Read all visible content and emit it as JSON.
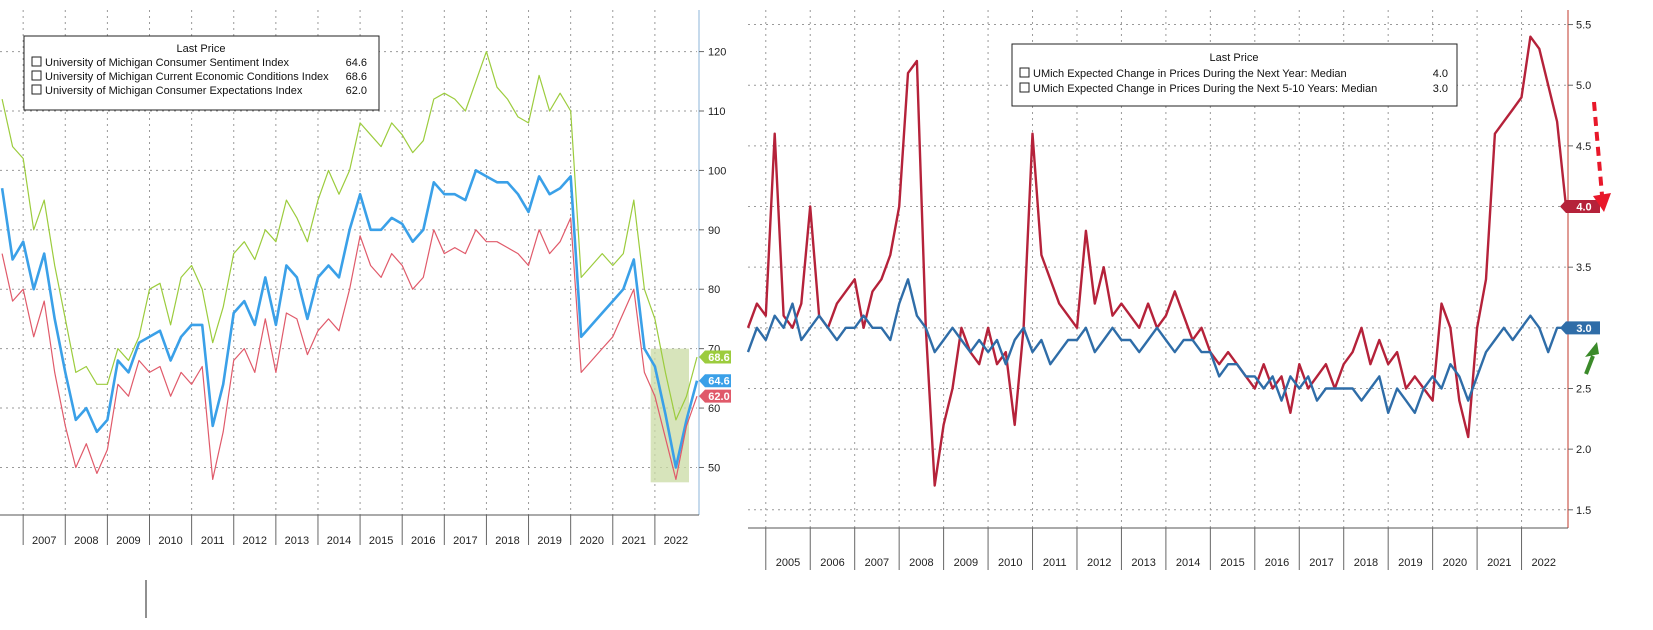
{
  "chart_data": [
    {
      "type": "line",
      "title": "",
      "legend_title": "Last Price",
      "legend_position": "top-left",
      "xlabel": "",
      "ylabel": "",
      "ylim": [
        42,
        127
      ],
      "y_ticks": [
        50,
        60,
        70,
        80,
        90,
        100,
        110,
        120
      ],
      "x_ticks": [
        "2007",
        "2008",
        "2009",
        "2010",
        "2011",
        "2012",
        "2013",
        "2014",
        "2015",
        "2016",
        "2017",
        "2018",
        "2019",
        "2020",
        "2021",
        "2022"
      ],
      "xlim": [
        2006.45,
        2023.0
      ],
      "grid": true,
      "annotation": "shaded box over 2022 trough",
      "series": [
        {
          "name": "University of Michigan Consumer Sentiment Index",
          "last": "64.6",
          "color": "#3aa0e8",
          "x": [
            2006.5,
            2006.75,
            2007.0,
            2007.25,
            2007.5,
            2007.75,
            2008.0,
            2008.25,
            2008.5,
            2008.75,
            2009.0,
            2009.25,
            2009.5,
            2009.75,
            2010.0,
            2010.25,
            2010.5,
            2010.75,
            2011.0,
            2011.25,
            2011.5,
            2011.75,
            2012.0,
            2012.25,
            2012.5,
            2012.75,
            2013.0,
            2013.25,
            2013.5,
            2013.75,
            2014.0,
            2014.25,
            2014.5,
            2014.75,
            2015.0,
            2015.25,
            2015.5,
            2015.75,
            2016.0,
            2016.25,
            2016.5,
            2016.75,
            2017.0,
            2017.25,
            2017.5,
            2017.75,
            2018.0,
            2018.25,
            2018.5,
            2018.75,
            2019.0,
            2019.25,
            2019.5,
            2019.75,
            2020.0,
            2020.25,
            2020.5,
            2020.75,
            2021.0,
            2021.25,
            2021.5,
            2021.75,
            2022.0,
            2022.25,
            2022.5,
            2022.75,
            2023.0
          ],
          "values": [
            97,
            85,
            88,
            80,
            86,
            75,
            66,
            58,
            60,
            56,
            58,
            68,
            66,
            71,
            72,
            73,
            68,
            72,
            74,
            74,
            57,
            64,
            76,
            78,
            74,
            82,
            74,
            84,
            82,
            75,
            82,
            84,
            82,
            90,
            96,
            90,
            90,
            92,
            91,
            88,
            90,
            98,
            96,
            96,
            95,
            100,
            99,
            98,
            98,
            96,
            93,
            99,
            96,
            97,
            99,
            72,
            74,
            76,
            78,
            80,
            85,
            70,
            67,
            59,
            50,
            58,
            64.6
          ]
        },
        {
          "name": "University of Michigan Current Economic Conditions Index",
          "last": "68.6",
          "color": "#9ccc3d",
          "x": [
            2006.5,
            2006.75,
            2007.0,
            2007.25,
            2007.5,
            2007.75,
            2008.0,
            2008.25,
            2008.5,
            2008.75,
            2009.0,
            2009.25,
            2009.5,
            2009.75,
            2010.0,
            2010.25,
            2010.5,
            2010.75,
            2011.0,
            2011.25,
            2011.5,
            2011.75,
            2012.0,
            2012.25,
            2012.5,
            2012.75,
            2013.0,
            2013.25,
            2013.5,
            2013.75,
            2014.0,
            2014.25,
            2014.5,
            2014.75,
            2015.0,
            2015.25,
            2015.5,
            2015.75,
            2016.0,
            2016.25,
            2016.5,
            2016.75,
            2017.0,
            2017.25,
            2017.5,
            2017.75,
            2018.0,
            2018.25,
            2018.5,
            2018.75,
            2019.0,
            2019.25,
            2019.5,
            2019.75,
            2020.0,
            2020.25,
            2020.5,
            2020.75,
            2021.0,
            2021.25,
            2021.5,
            2021.75,
            2022.0,
            2022.25,
            2022.5,
            2022.75,
            2023.0
          ],
          "values": [
            112,
            104,
            102,
            90,
            95,
            84,
            75,
            66,
            67,
            64,
            64,
            70,
            68,
            72,
            80,
            81,
            74,
            82,
            84,
            80,
            71,
            77,
            86,
            88,
            85,
            90,
            88,
            95,
            92,
            88,
            95,
            100,
            96,
            100,
            108,
            106,
            104,
            108,
            106,
            103,
            105,
            112,
            113,
            112,
            110,
            115,
            120,
            114,
            112,
            109,
            108,
            116,
            110,
            113,
            110,
            82,
            84,
            86,
            84,
            86,
            95,
            80,
            75,
            66,
            58,
            62,
            68.6
          ]
        },
        {
          "name": "University of Michigan Consumer Expectations Index",
          "last": "62.0",
          "color": "#e05a6a",
          "x": [
            2006.5,
            2006.75,
            2007.0,
            2007.25,
            2007.5,
            2007.75,
            2008.0,
            2008.25,
            2008.5,
            2008.75,
            2009.0,
            2009.25,
            2009.5,
            2009.75,
            2010.0,
            2010.25,
            2010.5,
            2010.75,
            2011.0,
            2011.25,
            2011.5,
            2011.75,
            2012.0,
            2012.25,
            2012.5,
            2012.75,
            2013.0,
            2013.25,
            2013.5,
            2013.75,
            2014.0,
            2014.25,
            2014.5,
            2014.75,
            2015.0,
            2015.25,
            2015.5,
            2015.75,
            2016.0,
            2016.25,
            2016.5,
            2016.75,
            2017.0,
            2017.25,
            2017.5,
            2017.75,
            2018.0,
            2018.25,
            2018.5,
            2018.75,
            2019.0,
            2019.25,
            2019.5,
            2019.75,
            2020.0,
            2020.25,
            2020.5,
            2020.75,
            2021.0,
            2021.25,
            2021.5,
            2021.75,
            2022.0,
            2022.25,
            2022.5,
            2022.75,
            2023.0
          ],
          "values": [
            86,
            78,
            80,
            72,
            78,
            66,
            57,
            50,
            54,
            49,
            53,
            64,
            62,
            68,
            66,
            67,
            62,
            66,
            64,
            67,
            48,
            56,
            68,
            70,
            66,
            75,
            66,
            76,
            75,
            69,
            73,
            75,
            73,
            80,
            89,
            84,
            82,
            86,
            84,
            80,
            82,
            90,
            86,
            87,
            86,
            90,
            88,
            88,
            87,
            86,
            84,
            90,
            86,
            88,
            92,
            66,
            68,
            70,
            72,
            76,
            80,
            66,
            62,
            55,
            48,
            57,
            62.0
          ]
        }
      ]
    },
    {
      "type": "line",
      "title": "",
      "legend_title": "Last Price",
      "legend_position": "top-center",
      "xlabel": "",
      "ylabel": "",
      "ylim": [
        1.35,
        5.62
      ],
      "y_ticks": [
        1.5,
        2.0,
        2.5,
        3.0,
        3.5,
        4.0,
        4.5,
        5.0,
        5.5
      ],
      "y_tick_labels": [
        "1.5",
        "2.0",
        "2.5",
        "3.0",
        "3.5",
        "4.0",
        "4.5",
        "5.0",
        "5.5"
      ],
      "x_ticks": [
        "2005",
        "2006",
        "2007",
        "2008",
        "2009",
        "2010",
        "2011",
        "2012",
        "2013",
        "2014",
        "2015",
        "2016",
        "2017",
        "2018",
        "2019",
        "2020",
        "2021",
        "2022"
      ],
      "xlim": [
        2004.6,
        2023.0
      ],
      "grid": true,
      "annotation": "red dashed arrow down to 4.0, green arrow up at 3.0",
      "series": [
        {
          "name": "UMich Expected Change in Prices During the Next Year: Median",
          "last": "4.0",
          "color": "#b5223a",
          "x": [
            2004.6,
            2004.8,
            2005.0,
            2005.2,
            2005.4,
            2005.6,
            2005.8,
            2006.0,
            2006.2,
            2006.4,
            2006.6,
            2006.8,
            2007.0,
            2007.2,
            2007.4,
            2007.6,
            2007.8,
            2008.0,
            2008.2,
            2008.4,
            2008.6,
            2008.8,
            2009.0,
            2009.2,
            2009.4,
            2009.6,
            2009.8,
            2010.0,
            2010.2,
            2010.4,
            2010.6,
            2010.8,
            2011.0,
            2011.2,
            2011.4,
            2011.6,
            2011.8,
            2012.0,
            2012.2,
            2012.4,
            2012.6,
            2012.8,
            2013.0,
            2013.2,
            2013.4,
            2013.6,
            2013.8,
            2014.0,
            2014.2,
            2014.4,
            2014.6,
            2014.8,
            2015.0,
            2015.2,
            2015.4,
            2015.6,
            2015.8,
            2016.0,
            2016.2,
            2016.4,
            2016.6,
            2016.8,
            2017.0,
            2017.2,
            2017.4,
            2017.6,
            2017.8,
            2018.0,
            2018.2,
            2018.4,
            2018.6,
            2018.8,
            2019.0,
            2019.2,
            2019.4,
            2019.6,
            2019.8,
            2020.0,
            2020.2,
            2020.4,
            2020.6,
            2020.8,
            2021.0,
            2021.2,
            2021.4,
            2021.6,
            2021.8,
            2022.0,
            2022.2,
            2022.4,
            2022.6,
            2022.8,
            2023.0
          ],
          "values": [
            3.0,
            3.2,
            3.1,
            4.6,
            3.1,
            3.0,
            3.2,
            4.0,
            3.1,
            3.0,
            3.2,
            3.3,
            3.4,
            3.0,
            3.3,
            3.4,
            3.6,
            4.0,
            5.1,
            5.2,
            3.0,
            1.7,
            2.2,
            2.5,
            3.0,
            2.8,
            2.7,
            3.0,
            2.7,
            2.8,
            2.2,
            3.0,
            4.6,
            3.6,
            3.4,
            3.2,
            3.1,
            3.0,
            3.8,
            3.2,
            3.5,
            3.1,
            3.2,
            3.1,
            3.0,
            3.2,
            3.0,
            3.1,
            3.3,
            3.1,
            2.9,
            3.0,
            2.8,
            2.7,
            2.8,
            2.7,
            2.6,
            2.5,
            2.7,
            2.5,
            2.6,
            2.3,
            2.7,
            2.5,
            2.6,
            2.7,
            2.5,
            2.7,
            2.8,
            3.0,
            2.7,
            2.9,
            2.7,
            2.8,
            2.5,
            2.6,
            2.5,
            2.4,
            3.2,
            3.0,
            2.4,
            2.1,
            3.0,
            3.4,
            4.6,
            4.7,
            4.8,
            4.9,
            5.4,
            5.3,
            5.0,
            4.7,
            4.0
          ]
        },
        {
          "name": "UMich Expected Change in Prices During the Next 5-10 Years: Median",
          "last": "3.0",
          "color": "#2f6da8",
          "x": [
            2004.6,
            2004.8,
            2005.0,
            2005.2,
            2005.4,
            2005.6,
            2005.8,
            2006.0,
            2006.2,
            2006.4,
            2006.6,
            2006.8,
            2007.0,
            2007.2,
            2007.4,
            2007.6,
            2007.8,
            2008.0,
            2008.2,
            2008.4,
            2008.6,
            2008.8,
            2009.0,
            2009.2,
            2009.4,
            2009.6,
            2009.8,
            2010.0,
            2010.2,
            2010.4,
            2010.6,
            2010.8,
            2011.0,
            2011.2,
            2011.4,
            2011.6,
            2011.8,
            2012.0,
            2012.2,
            2012.4,
            2012.6,
            2012.8,
            2013.0,
            2013.2,
            2013.4,
            2013.6,
            2013.8,
            2014.0,
            2014.2,
            2014.4,
            2014.6,
            2014.8,
            2015.0,
            2015.2,
            2015.4,
            2015.6,
            2015.8,
            2016.0,
            2016.2,
            2016.4,
            2016.6,
            2016.8,
            2017.0,
            2017.2,
            2017.4,
            2017.6,
            2017.8,
            2018.0,
            2018.2,
            2018.4,
            2018.6,
            2018.8,
            2019.0,
            2019.2,
            2019.4,
            2019.6,
            2019.8,
            2020.0,
            2020.2,
            2020.4,
            2020.6,
            2020.8,
            2021.0,
            2021.2,
            2021.4,
            2021.6,
            2021.8,
            2022.0,
            2022.2,
            2022.4,
            2022.6,
            2022.8,
            2023.0
          ],
          "values": [
            2.8,
            3.0,
            2.9,
            3.1,
            3.0,
            3.2,
            2.9,
            3.0,
            3.1,
            3.0,
            2.9,
            3.0,
            3.0,
            3.1,
            3.0,
            3.0,
            2.9,
            3.2,
            3.4,
            3.1,
            3.0,
            2.8,
            2.9,
            3.0,
            2.9,
            2.8,
            2.9,
            2.8,
            2.9,
            2.7,
            2.9,
            3.0,
            2.8,
            2.9,
            2.7,
            2.8,
            2.9,
            2.9,
            3.0,
            2.8,
            2.9,
            3.0,
            2.9,
            2.9,
            2.8,
            2.9,
            3.0,
            2.9,
            2.8,
            2.9,
            2.9,
            2.8,
            2.8,
            2.6,
            2.7,
            2.7,
            2.6,
            2.6,
            2.5,
            2.6,
            2.4,
            2.6,
            2.5,
            2.6,
            2.4,
            2.5,
            2.5,
            2.5,
            2.5,
            2.4,
            2.5,
            2.6,
            2.3,
            2.5,
            2.4,
            2.3,
            2.5,
            2.6,
            2.5,
            2.7,
            2.6,
            2.4,
            2.6,
            2.8,
            2.9,
            3.0,
            2.9,
            3.0,
            3.1,
            3.0,
            2.8,
            3.0,
            3.0
          ]
        }
      ]
    }
  ]
}
